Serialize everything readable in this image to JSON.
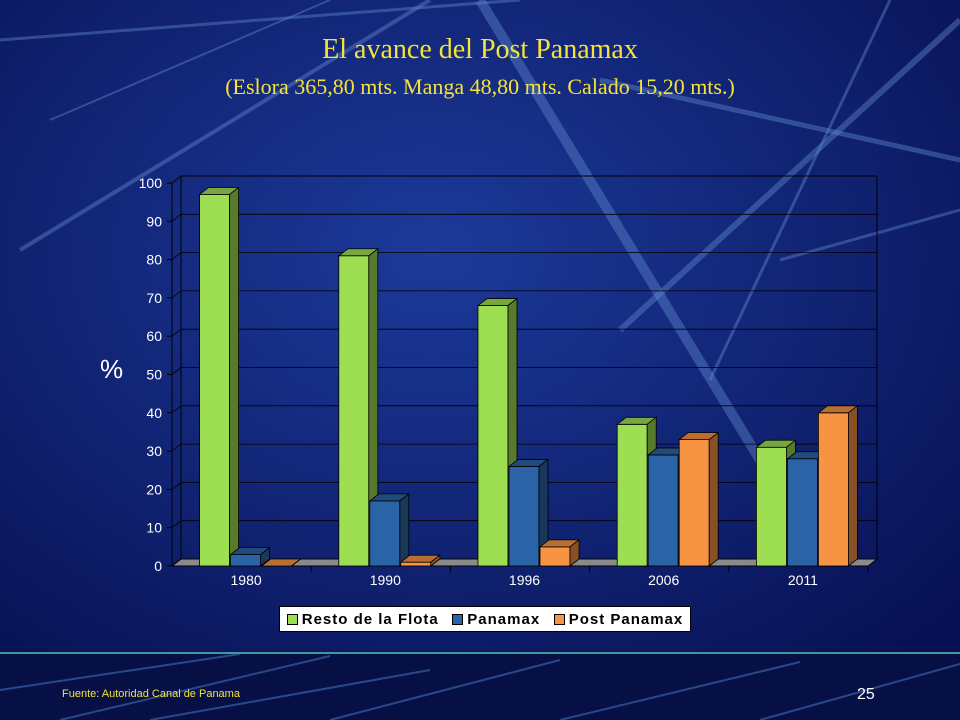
{
  "slide": {
    "title": "El avance del Post Panamax",
    "subtitle": "(Eslora 365,80 mts. Manga 48,80 mts. Calado 15,20 mts.)",
    "source": "Fuente: Autoridad Canal de Panama",
    "page_number": "25"
  },
  "chart_data": {
    "type": "bar",
    "title": "",
    "xlabel": "",
    "ylabel": "%",
    "ylim": [
      0,
      100
    ],
    "yticks": [
      0,
      10,
      20,
      30,
      40,
      50,
      60,
      70,
      80,
      90,
      100
    ],
    "grid": true,
    "legend_position": "bottom",
    "categories": [
      "1980",
      "1990",
      "1996",
      "2006",
      "2011"
    ],
    "series": [
      {
        "name": "Resto de la Flota",
        "values": [
          97,
          81,
          68,
          37,
          31
        ],
        "color": "#9ede52"
      },
      {
        "name": "Panamax",
        "values": [
          3,
          17,
          26,
          29,
          28
        ],
        "color": "#2a64a6"
      },
      {
        "name": "Post Panamax",
        "values": [
          0,
          1,
          5,
          33,
          40
        ],
        "color": "#f79443"
      }
    ]
  }
}
